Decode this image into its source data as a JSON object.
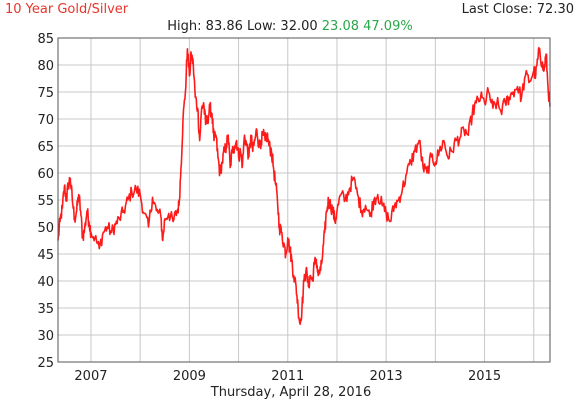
{
  "header": {
    "title": "10 Year Gold/Silver",
    "last_close": "Last Close: 72.30",
    "stats_prefix": "High: 83.86 Low: 32.00",
    "stats_change": "23.08 47.09%"
  },
  "colors": {
    "title": "#e8352a",
    "series": "#ff1a1a",
    "change_positive": "#2aa84a",
    "grid": "#c8c8c8"
  },
  "chart_data": {
    "type": "line",
    "title": "10 Year Gold/Silver",
    "xlabel": "Thursday, April 28, 2016",
    "ylabel": "",
    "xlim": [
      2006.33,
      2016.33
    ],
    "ylim": [
      25,
      85
    ],
    "grid": true,
    "xticks": [
      2007,
      2008,
      2009,
      2010,
      2011,
      2012,
      2013,
      2014,
      2015,
      2016
    ],
    "xtick_labels": [
      "2007",
      "",
      "2009",
      "",
      "2011",
      "",
      "2013",
      "",
      "2015",
      ""
    ],
    "yticks": [
      25,
      30,
      35,
      40,
      45,
      50,
      55,
      60,
      65,
      70,
      75,
      80,
      85
    ],
    "series": [
      {
        "x": [
          2006.33,
          2006.37,
          2006.42,
          2006.46,
          2006.5,
          2006.54,
          2006.58,
          2006.62,
          2006.67,
          2006.71,
          2006.75,
          2006.79,
          2006.83,
          2006.87,
          2006.92,
          2006.96,
          2007.0,
          2007.08,
          2007.17,
          2007.25,
          2007.33,
          2007.42,
          2007.5,
          2007.58,
          2007.67,
          2007.75,
          2007.83,
          2007.92,
          2008.0,
          2008.08,
          2008.17,
          2008.25,
          2008.33,
          2008.42,
          2008.46,
          2008.5,
          2008.58,
          2008.67,
          2008.75,
          2008.79,
          2008.83,
          2008.87,
          2008.92,
          2008.96,
          2009.0,
          2009.04,
          2009.08,
          2009.12,
          2009.17,
          2009.21,
          2009.25,
          2009.29,
          2009.33,
          2009.37,
          2009.42,
          2009.46,
          2009.5,
          2009.54,
          2009.58,
          2009.62,
          2009.67,
          2009.71,
          2009.75,
          2009.79,
          2009.83,
          2009.87,
          2009.92,
          2009.96,
          2010.0,
          2010.04,
          2010.08,
          2010.12,
          2010.17,
          2010.21,
          2010.25,
          2010.29,
          2010.33,
          2010.37,
          2010.42,
          2010.46,
          2010.5,
          2010.54,
          2010.58,
          2010.62,
          2010.67,
          2010.71,
          2010.75,
          2010.79,
          2010.83,
          2010.87,
          2010.92,
          2010.96,
          2011.0,
          2011.04,
          2011.08,
          2011.12,
          2011.17,
          2011.21,
          2011.25,
          2011.29,
          2011.33,
          2011.37,
          2011.42,
          2011.46,
          2011.5,
          2011.54,
          2011.58,
          2011.62,
          2011.67,
          2011.71,
          2011.75,
          2011.79,
          2011.83,
          2011.87,
          2011.92,
          2011.96,
          2012.0,
          2012.08,
          2012.17,
          2012.25,
          2012.33,
          2012.42,
          2012.5,
          2012.58,
          2012.67,
          2012.75,
          2012.83,
          2012.92,
          2013.0,
          2013.08,
          2013.17,
          2013.25,
          2013.33,
          2013.42,
          2013.5,
          2013.58,
          2013.67,
          2013.75,
          2013.83,
          2013.92,
          2014.0,
          2014.08,
          2014.17,
          2014.25,
          2014.33,
          2014.42,
          2014.5,
          2014.58,
          2014.67,
          2014.75,
          2014.83,
          2014.92,
          2015.0,
          2015.08,
          2015.17,
          2015.25,
          2015.33,
          2015.42,
          2015.5,
          2015.58,
          2015.67,
          2015.75,
          2015.83,
          2015.92,
          2016.0,
          2016.04,
          2016.08,
          2016.12,
          2016.17,
          2016.21,
          2016.25,
          2016.29,
          2016.33
        ],
        "y": [
          47.5,
          51.0,
          53.5,
          57.5,
          55.0,
          57.8,
          59.0,
          55.0,
          51.5,
          53.0,
          56.0,
          53.0,
          48.0,
          49.5,
          53.0,
          51.0,
          49.0,
          48.0,
          46.0,
          49.0,
          50.0,
          49.0,
          50.5,
          51.5,
          53.0,
          55.0,
          56.5,
          57.0,
          56.0,
          52.5,
          50.0,
          55.5,
          53.0,
          52.0,
          47.5,
          51.5,
          52.5,
          51.0,
          53.0,
          54.0,
          61.0,
          70.0,
          75.0,
          83.0,
          78.0,
          82.0,
          80.0,
          74.0,
          72.0,
          66.0,
          72.0,
          73.0,
          69.0,
          70.0,
          72.0,
          71.0,
          66.0,
          67.0,
          63.0,
          60.0,
          62.0,
          64.0,
          65.0,
          67.0,
          61.0,
          64.0,
          65.0,
          66.0,
          63.0,
          64.0,
          61.5,
          67.0,
          65.0,
          63.0,
          67.0,
          64.0,
          66.0,
          68.0,
          65.0,
          66.0,
          67.0,
          66.0,
          67.0,
          65.0,
          64.0,
          61.0,
          58.0,
          55.0,
          50.0,
          49.0,
          47.0,
          45.0,
          48.0,
          46.0,
          44.0,
          41.0,
          39.0,
          35.0,
          32.0,
          35.0,
          40.0,
          42.0,
          39.0,
          41.0,
          40.0,
          43.0,
          44.0,
          41.0,
          42.0,
          45.0,
          49.0,
          53.0,
          55.0,
          54.0,
          53.0,
          51.0,
          53.0,
          56.0,
          55.0,
          57.0,
          59.0,
          56.0,
          53.0,
          54.0,
          52.0,
          55.0,
          56.0,
          54.0,
          52.5,
          51.0,
          54.0,
          55.0,
          57.0,
          60.0,
          62.0,
          64.0,
          66.0,
          61.0,
          60.0,
          63.0,
          62.0,
          64.0,
          66.0,
          63.0,
          64.0,
          66.0,
          66.5,
          68.0,
          67.0,
          71.0,
          73.0,
          74.0,
          73.0,
          75.0,
          72.0,
          73.0,
          71.5,
          73.0,
          74.0,
          75.0,
          76.0,
          74.0,
          78.0,
          77.0,
          79.0,
          78.0,
          81.0,
          83.0,
          80.0,
          79.0,
          82.0,
          76.0,
          72.3
        ]
      }
    ],
    "annotations": {
      "high": 83.86,
      "low": 32.0,
      "change": 23.08,
      "change_pct": 47.09,
      "last_close": 72.3
    }
  }
}
